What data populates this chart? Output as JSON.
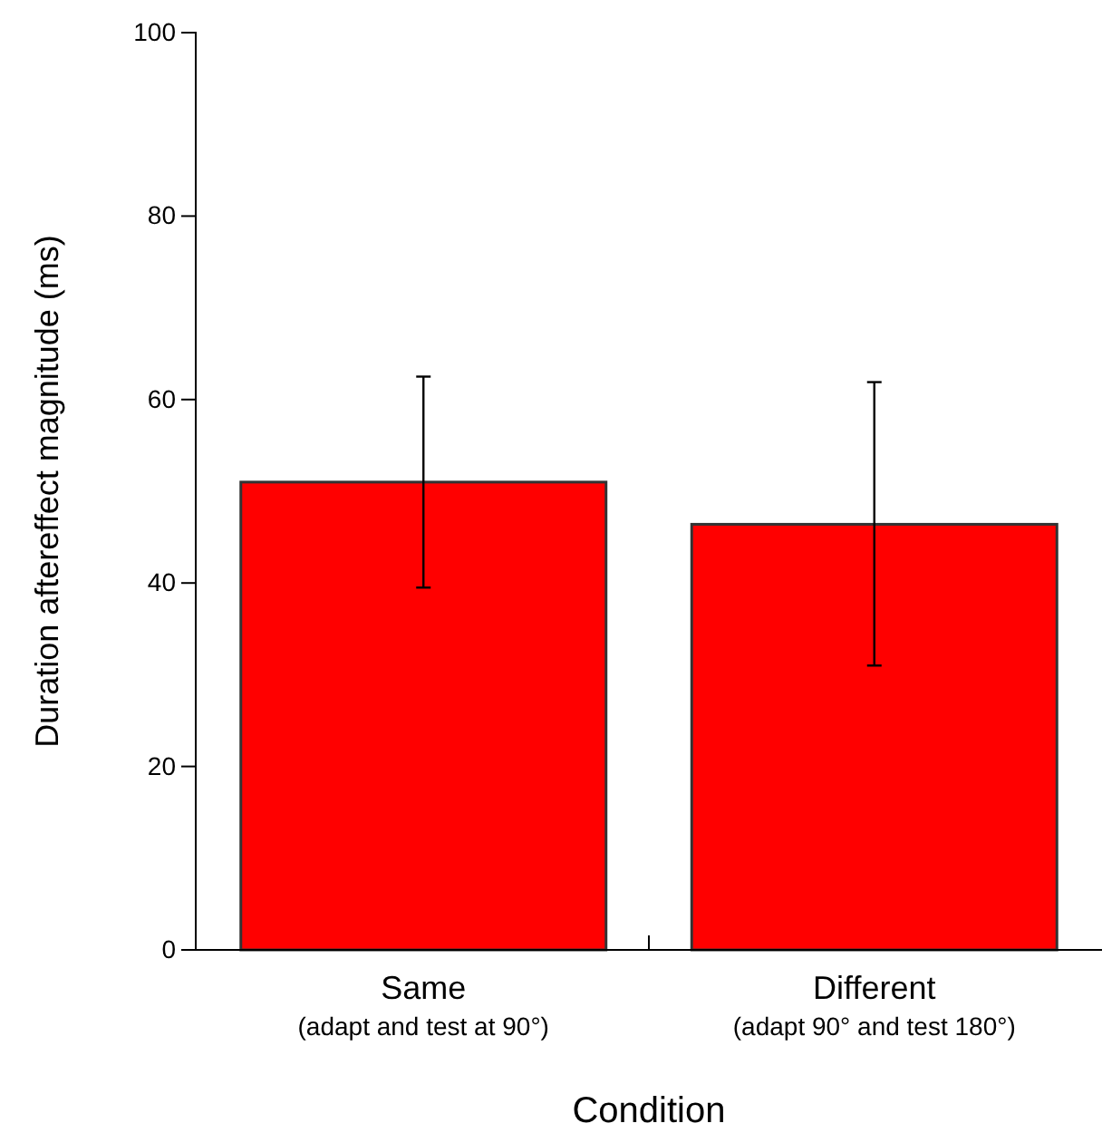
{
  "chart_data": {
    "type": "bar",
    "xlabel": "Condition",
    "ylabel": "Duration aftereffect magnitude (ms)",
    "categories": [
      "Same\n(adapt and test at 90°)",
      "Different\n(adapt 90° and test 180°)"
    ],
    "values": [
      51.0,
      46.4
    ],
    "errors": [
      [
        39.5,
        62.5
      ],
      [
        31.0,
        61.9
      ]
    ],
    "color": "#ff0000",
    "ylim": [
      0,
      100
    ],
    "yticks": [
      0,
      20,
      40,
      60,
      80,
      100
    ],
    "grid": false
  }
}
